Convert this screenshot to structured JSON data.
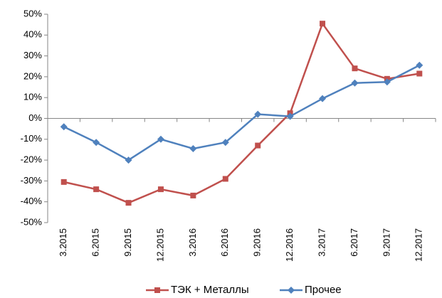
{
  "chart_data": {
    "type": "line",
    "categories": [
      "3.2015",
      "6.2015",
      "9.2015",
      "12.2015",
      "3.2016",
      "6.2016",
      "9.2016",
      "12.2016",
      "3.2017",
      "6.2017",
      "9.2017",
      "12.2017"
    ],
    "series": [
      {
        "name": "ТЭК + Металлы",
        "color": "#c0504d",
        "marker": "square",
        "values": [
          -30.5,
          -34,
          -40.5,
          -34,
          -37,
          -29,
          -13,
          2.5,
          45.5,
          24,
          19,
          21.5
        ]
      },
      {
        "name": "Прочее",
        "color": "#4f81bd",
        "marker": "diamond",
        "values": [
          -4,
          -11.5,
          -20,
          -10,
          -14.5,
          -11.5,
          2,
          1,
          9.5,
          17,
          17.5,
          25.5
        ]
      }
    ],
    "ylim": [
      -50,
      50
    ],
    "yticks": [
      {
        "value": -50,
        "label": "-50%"
      },
      {
        "value": -40,
        "label": "-40%"
      },
      {
        "value": -30,
        "label": "-30%"
      },
      {
        "value": -20,
        "label": "-20%"
      },
      {
        "value": -10,
        "label": "-10%"
      },
      {
        "value": 0,
        "label": "0%"
      },
      {
        "value": 10,
        "label": "10%"
      },
      {
        "value": 20,
        "label": "20%"
      },
      {
        "value": 30,
        "label": "30%"
      },
      {
        "value": 40,
        "label": "40%"
      },
      {
        "value": 50,
        "label": "50%"
      }
    ],
    "grid": false,
    "legend": "bottom"
  }
}
